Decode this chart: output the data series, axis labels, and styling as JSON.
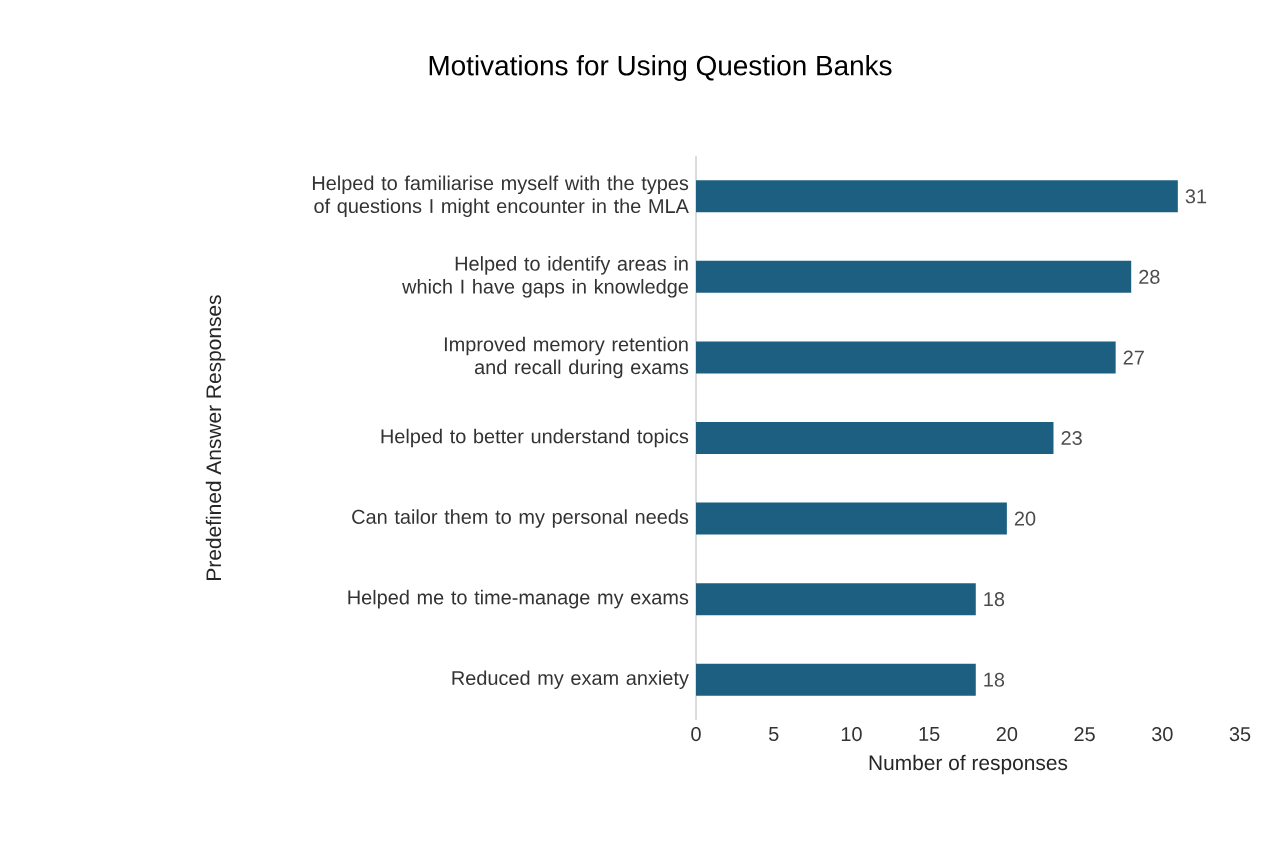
{
  "chart_data": {
    "type": "bar",
    "orientation": "horizontal",
    "title": "Motivations for Using Question Banks",
    "xlabel": "Number of responses",
    "ylabel": "Predefined Answer Responses",
    "categories": [
      "Helped to familiarise myself with the types of questions I might encounter in the MLA",
      "Helped to identify areas in which I have gaps in knowledge",
      "Improved memory retention and recall during exams",
      "Helped to better understand topics",
      "Can tailor them to my personal needs",
      "Helped me to time-manage my exams",
      "Reduced my exam anxiety"
    ],
    "values": [
      31,
      28,
      27,
      23,
      20,
      18,
      18
    ],
    "color": "#1c5f80",
    "data_labels": true,
    "grid": false,
    "xlim": [
      0,
      35
    ],
    "xticks": [
      0,
      5,
      10,
      15,
      20,
      25,
      30,
      35
    ]
  }
}
